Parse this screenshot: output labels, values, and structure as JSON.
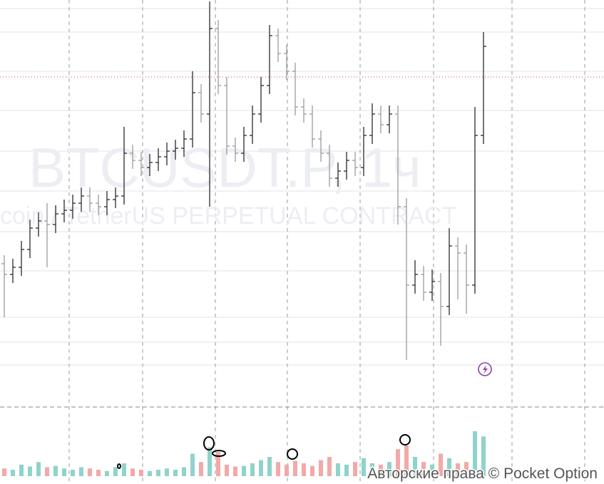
{
  "chart_data": {
    "type": "ohlc",
    "watermark": "BTCUSDT.P, 1ч",
    "watermark_subtitle": "coin / TetherUS PERPETUAL CONTRACT",
    "copyright": "Авторские права © Pocket Option",
    "open": [
      200,
      185,
      195,
      220,
      250,
      260,
      255,
      270,
      275,
      285,
      295,
      285,
      280,
      290,
      295,
      355,
      345,
      335,
      342,
      350,
      358,
      362,
      375,
      440,
      410,
      530,
      450,
      365,
      355,
      380,
      410,
      450,
      520,
      495,
      470,
      420,
      410,
      375,
      355,
      320,
      330,
      345,
      335,
      380,
      410,
      395,
      410,
      280,
      170,
      185,
      160,
      175,
      140,
      225,
      215,
      170,
      380
    ],
    "high": [
      212,
      207,
      232,
      262,
      272,
      285,
      282,
      290,
      297,
      307,
      307,
      297,
      302,
      307,
      392,
      367,
      357,
      354,
      362,
      370,
      374,
      387,
      470,
      452,
      568,
      542,
      462,
      377,
      392,
      422,
      462,
      535,
      530,
      507,
      482,
      432,
      422,
      387,
      367,
      342,
      357,
      357,
      392,
      425,
      422,
      422,
      422,
      292,
      205,
      197,
      192,
      187,
      250,
      237,
      227,
      420,
      525
    ],
    "low": [
      125,
      173,
      183,
      208,
      238,
      195,
      243,
      258,
      263,
      273,
      273,
      268,
      268,
      278,
      283,
      333,
      323,
      323,
      330,
      338,
      346,
      350,
      363,
      398,
      280,
      438,
      353,
      343,
      343,
      368,
      398,
      438,
      483,
      458,
      408,
      398,
      363,
      343,
      308,
      308,
      318,
      323,
      323,
      368,
      383,
      383,
      255,
      65,
      158,
      148,
      148,
      85,
      128,
      150,
      130,
      158,
      368
    ],
    "close": [
      185,
      195,
      220,
      250,
      260,
      255,
      270,
      275,
      285,
      295,
      285,
      280,
      290,
      295,
      355,
      345,
      335,
      342,
      350,
      358,
      362,
      375,
      440,
      410,
      530,
      450,
      365,
      355,
      380,
      410,
      450,
      520,
      495,
      470,
      420,
      410,
      375,
      355,
      320,
      330,
      345,
      335,
      380,
      410,
      395,
      410,
      280,
      170,
      185,
      160,
      175,
      140,
      225,
      215,
      170,
      380,
      505
    ],
    "volume": [
      12,
      10,
      18,
      15,
      22,
      14,
      16,
      12,
      10,
      14,
      12,
      10,
      8,
      14,
      20,
      12,
      10,
      8,
      10,
      12,
      10,
      14,
      35,
      22,
      45,
      38,
      18,
      15,
      16,
      20,
      25,
      30,
      22,
      18,
      24,
      20,
      16,
      25,
      30,
      20,
      18,
      22,
      28,
      20,
      18,
      22,
      42,
      48,
      30,
      22,
      18,
      35,
      28,
      20,
      22,
      70,
      62
    ],
    "up_color": "#2b2b2b",
    "down_color": "#9a9a9a",
    "volume_up_color": "#8fd3ca",
    "volume_down_color": "#f2a9a9",
    "ylim": [
      0,
      570
    ],
    "yticks": [
      58,
      90,
      125,
      190,
      245,
      302,
      358,
      415,
      470,
      525,
      558
    ],
    "volume_ylim": [
      0,
      100
    ],
    "price_line": 462,
    "grid": true
  }
}
